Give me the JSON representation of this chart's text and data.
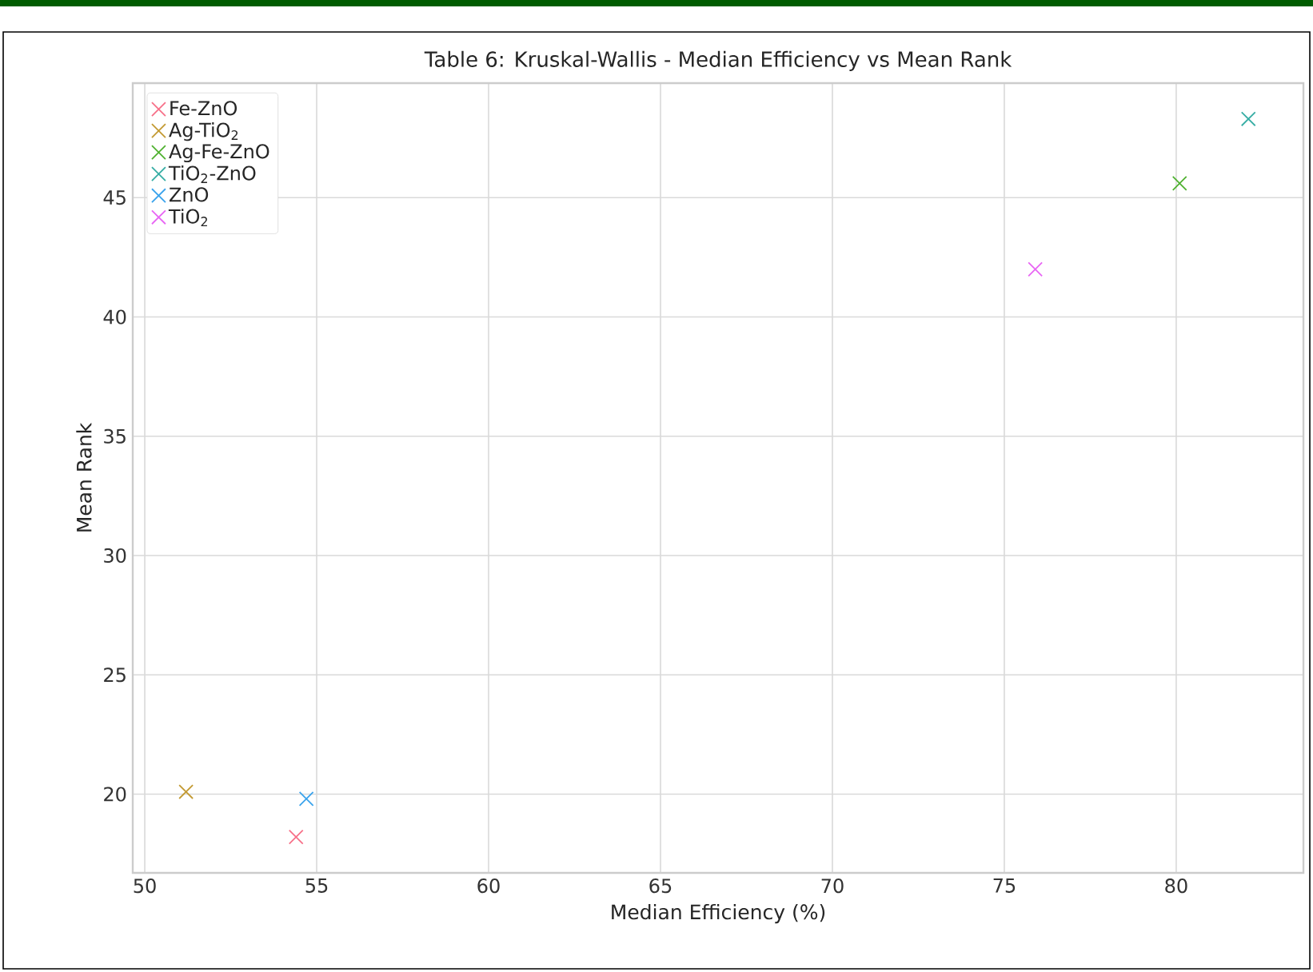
{
  "chart_data": {
    "type": "scatter",
    "title": "Table 6: Kruskal-Wallis - Median Efficiency vs Mean Rank",
    "xlabel": "Median Efficiency (%)",
    "ylabel": "Mean Rank",
    "xlim": [
      49.65,
      83.7
    ],
    "ylim": [
      16.7,
      49.8
    ],
    "xticks": [
      50,
      55,
      60,
      65,
      70,
      75,
      80
    ],
    "yticks": [
      20,
      25,
      30,
      35,
      40,
      45
    ],
    "grid": true,
    "legend": "top left",
    "marker": "cross",
    "series": [
      {
        "name": "Fe-ZnO",
        "color": "#f77189",
        "x": [
          54.4
        ],
        "values": [
          18.2
        ]
      },
      {
        "name": "Ag-TiO$_{2}$",
        "color": "#c39a33",
        "x": [
          51.2
        ],
        "values": [
          20.1
        ]
      },
      {
        "name": "Ag-Fe-ZnO",
        "color": "#50b131",
        "x": [
          80.1
        ],
        "values": [
          45.6
        ]
      },
      {
        "name": "TiO$_{2}$-ZnO",
        "color": "#36ada4",
        "x": [
          82.1
        ],
        "values": [
          48.3
        ]
      },
      {
        "name": "ZnO",
        "color": "#3ba3ec",
        "x": [
          54.7
        ],
        "values": [
          19.8
        ]
      },
      {
        "name": "TiO$_{2}$",
        "color": "#e866f4",
        "x": [
          75.9
        ],
        "values": [
          42.0
        ]
      }
    ]
  }
}
